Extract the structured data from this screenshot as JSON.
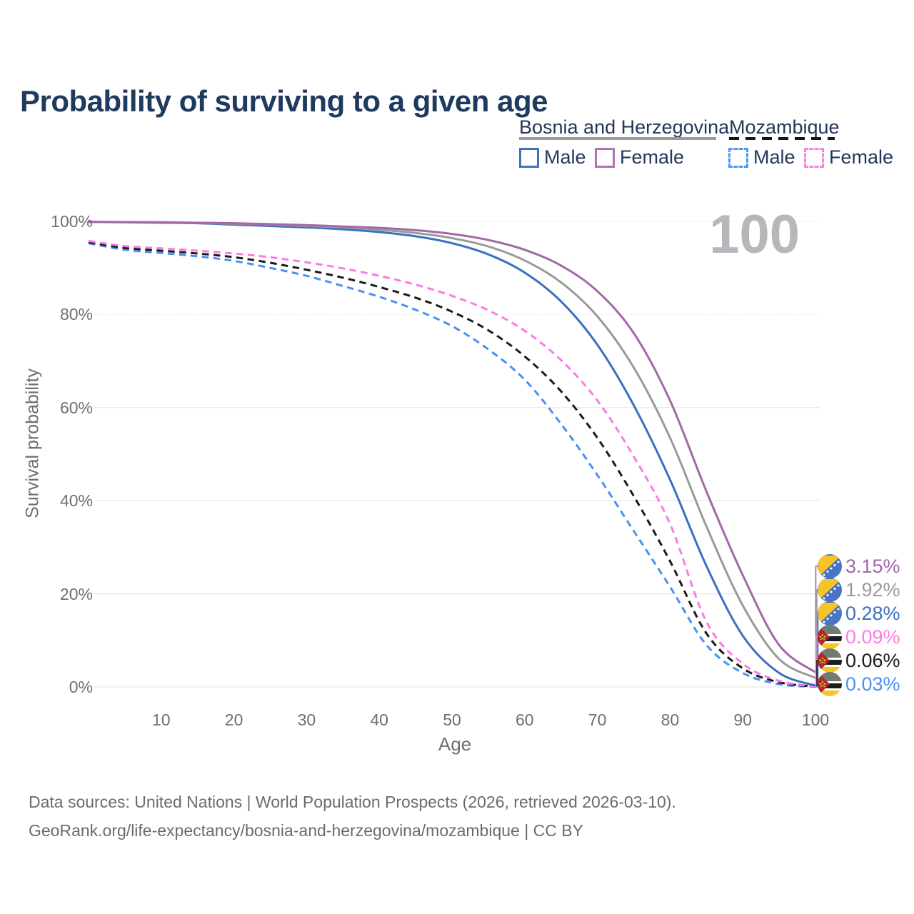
{
  "page": {
    "title": "Probability of surviving to a given age",
    "watermark_age": "100"
  },
  "legend": {
    "groups": [
      {
        "label": "Bosnia and Herzegovina",
        "line_style": "solid",
        "underline_color": "#9a9a9a",
        "items": [
          {
            "label": "Male",
            "color": "#4472b8"
          },
          {
            "label": "Female",
            "color": "#b273b2"
          }
        ]
      },
      {
        "label": "Mozambique",
        "line_style": "dashed",
        "underline_color": "#161616",
        "items": [
          {
            "label": "Male",
            "color": "#4d97f5"
          },
          {
            "label": "Female",
            "color": "#fb80e8"
          }
        ]
      }
    ]
  },
  "chart_data": {
    "type": "line",
    "title": "Probability of surviving to a given age",
    "xlabel": "Age",
    "ylabel": "Survival probability",
    "xlim": [
      0,
      100
    ],
    "ylim": [
      0,
      100
    ],
    "grid": "horizontal",
    "legend_position": "top-right",
    "x_ticks": [
      10,
      20,
      30,
      40,
      50,
      60,
      70,
      80,
      90,
      100
    ],
    "y_ticks": [
      {
        "value": 0,
        "label": "0%"
      },
      {
        "value": 20,
        "label": "20%"
      },
      {
        "value": 40,
        "label": "40%"
      },
      {
        "value": 60,
        "label": "60%"
      },
      {
        "value": 80,
        "label": "80%"
      },
      {
        "value": 100,
        "label": "100%"
      }
    ],
    "ages": [
      0,
      5,
      10,
      15,
      20,
      25,
      30,
      35,
      40,
      45,
      50,
      55,
      60,
      65,
      70,
      75,
      80,
      85,
      90,
      95,
      100
    ],
    "series": [
      {
        "id": "bosnia-female",
        "country": "Bosnia and Herzegovina",
        "sex": "Female",
        "color": "#a268a8",
        "dash": "solid",
        "end_label": "3.15%",
        "flag": "bosnia-and-herzegovina-flag-icon",
        "values": [
          99.9,
          99.85,
          99.8,
          99.7,
          99.6,
          99.4,
          99.2,
          98.9,
          98.6,
          98.1,
          97.3,
          96.0,
          93.9,
          90.5,
          85.0,
          76.0,
          61.5,
          42.0,
          24.0,
          9.0,
          3.15
        ]
      },
      {
        "id": "bosnia-total",
        "country": "Bosnia and Herzegovina",
        "sex": "Both",
        "color": "#9a9a9a",
        "dash": "solid",
        "end_label": "1.92%",
        "flag": "bosnia-and-herzegovina-flag-icon",
        "values": [
          99.9,
          99.85,
          99.75,
          99.65,
          99.5,
          99.3,
          99.0,
          98.7,
          98.2,
          97.5,
          96.4,
          94.6,
          91.6,
          86.9,
          79.6,
          68.6,
          53.5,
          34.5,
          17.5,
          6.0,
          1.92
        ]
      },
      {
        "id": "bosnia-male",
        "country": "Bosnia and Herzegovina",
        "sex": "Male",
        "color": "#3a70c0",
        "dash": "solid",
        "end_label": "0.28%",
        "flag": "bosnia-and-herzegovina-flag-icon",
        "values": [
          99.9,
          99.8,
          99.7,
          99.6,
          99.3,
          99.0,
          98.7,
          98.3,
          97.7,
          96.8,
          95.3,
          92.9,
          89.0,
          82.8,
          73.5,
          60.5,
          44.5,
          26.0,
          11.0,
          3.0,
          0.28
        ]
      },
      {
        "id": "mozambique-female",
        "country": "Mozambique",
        "sex": "Female",
        "color": "#fb7be5",
        "dash": "dashed",
        "end_label": "0.09%",
        "flag": "mozambique-flag-icon",
        "values": [
          95.8,
          94.7,
          94.2,
          93.7,
          93.1,
          92.3,
          91.2,
          89.9,
          88.3,
          86.4,
          84.0,
          80.9,
          76.5,
          70.2,
          61.5,
          49.5,
          35.0,
          14.0,
          5.0,
          1.3,
          0.09
        ]
      },
      {
        "id": "mozambique-total",
        "country": "Mozambique",
        "sex": "Both",
        "color": "#1a1a1a",
        "dash": "dashed",
        "end_label": "0.06%",
        "flag": "mozambique-flag-icon",
        "values": [
          95.5,
          94.3,
          93.7,
          93.1,
          92.3,
          91.1,
          89.6,
          87.9,
          85.9,
          83.6,
          80.6,
          76.6,
          71.0,
          63.5,
          53.5,
          41.0,
          27.0,
          11.5,
          4.0,
          1.0,
          0.06
        ]
      },
      {
        "id": "mozambique-male",
        "country": "Mozambique",
        "sex": "Male",
        "color": "#4a90f2",
        "dash": "dashed",
        "end_label": "0.03%",
        "flag": "mozambique-flag-icon",
        "values": [
          95.3,
          93.9,
          93.2,
          92.5,
          91.5,
          90.0,
          88.3,
          86.1,
          83.8,
          81.0,
          77.5,
          72.5,
          66.0,
          56.5,
          45.5,
          33.5,
          21.5,
          9.0,
          3.0,
          0.6,
          0.03
        ]
      }
    ]
  },
  "footer": {
    "line1": "Data sources: United Nations | World Population Prospects (2026, retrieved 2026-03-10).",
    "line2": "GeoRank.org/life-expectancy/bosnia-and-herzegovina/mozambique | CC BY"
  }
}
